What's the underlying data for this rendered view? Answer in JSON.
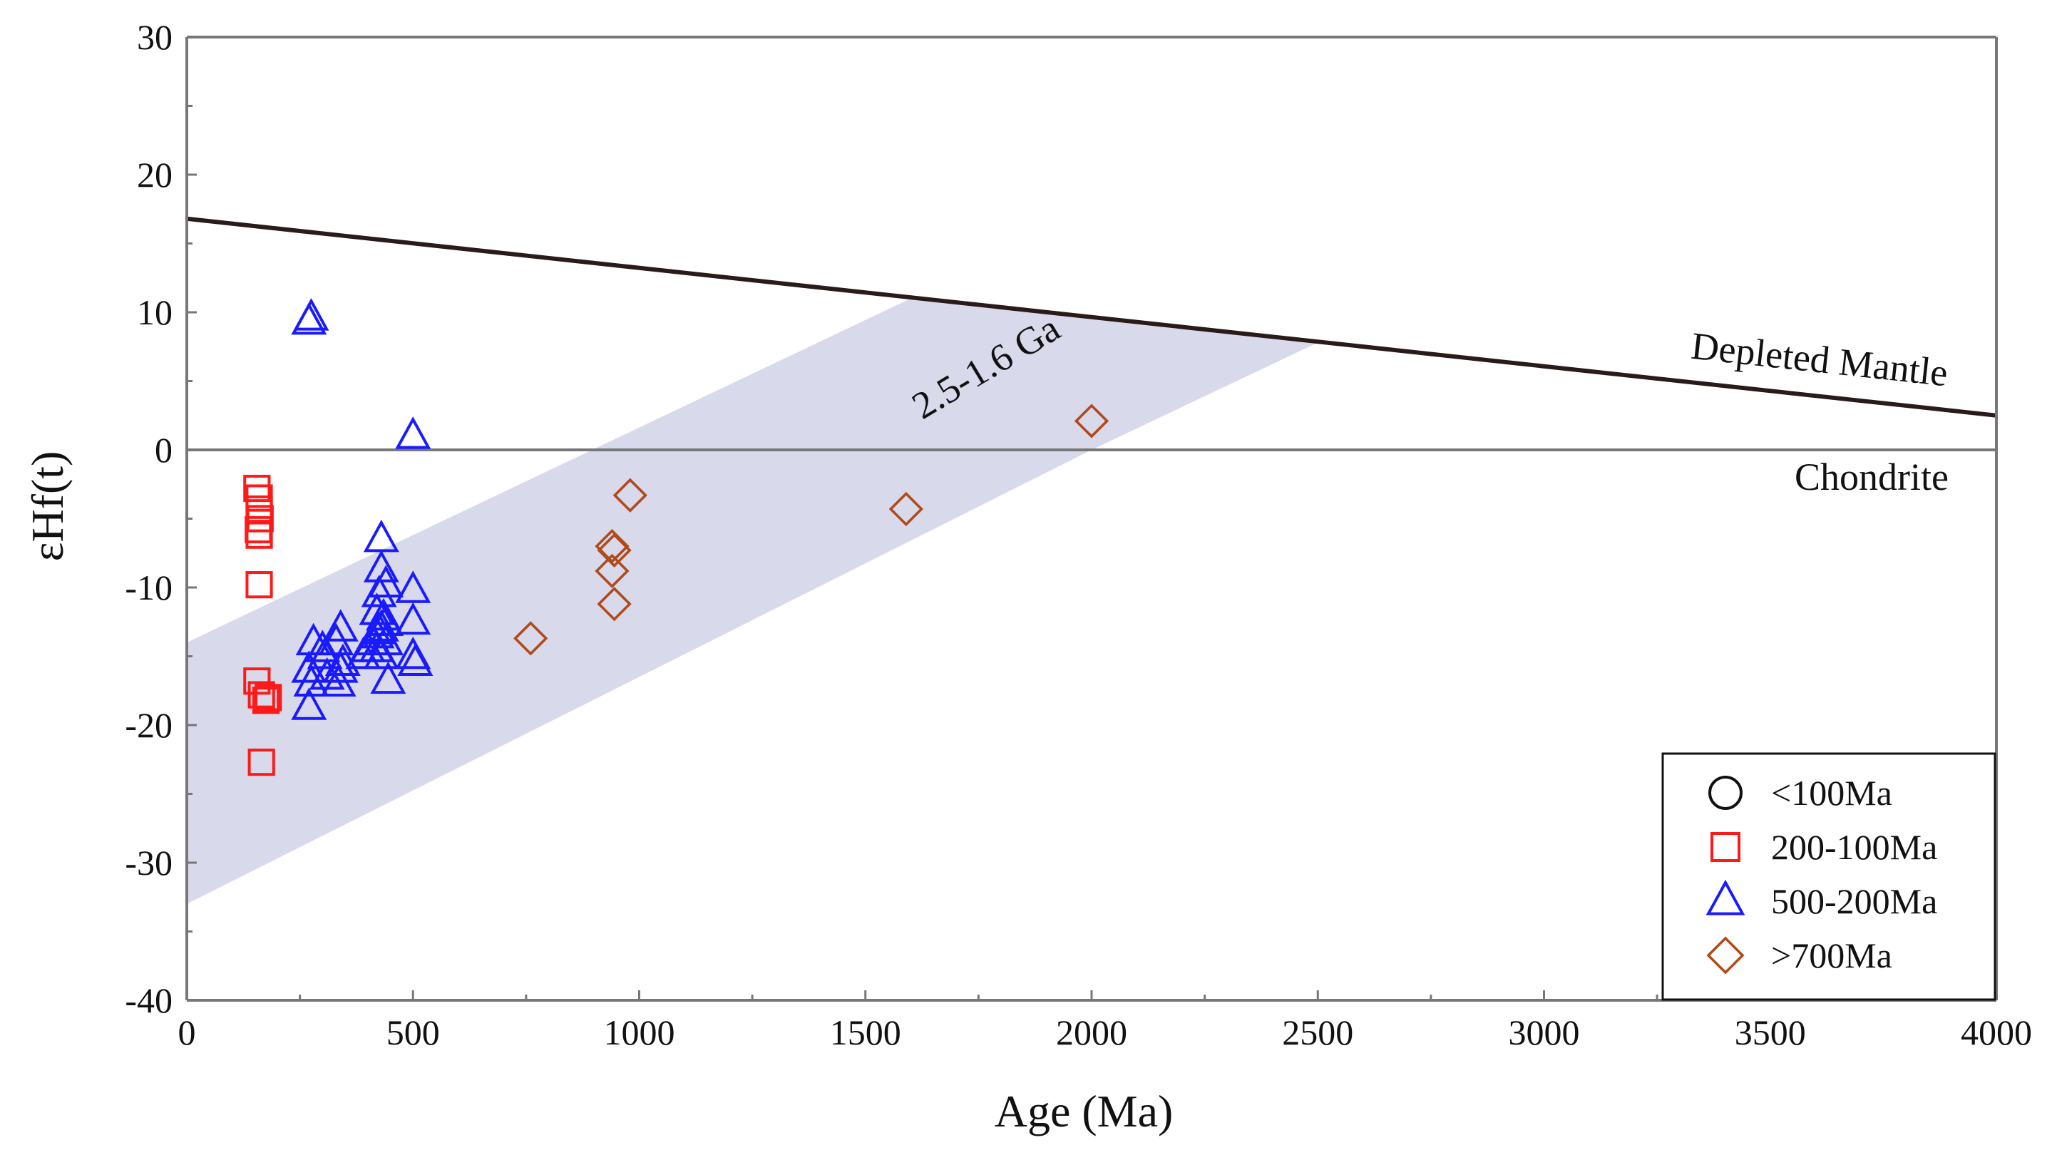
{
  "chart_data": {
    "type": "scatter",
    "title": "",
    "xlabel": "Age (Ma)",
    "ylabel": "εHf(t)",
    "xlim": [
      0,
      4000
    ],
    "ylim": [
      -40,
      30
    ],
    "xticks": [
      0,
      500,
      1000,
      1500,
      2000,
      2500,
      3000,
      3500,
      4000
    ],
    "yticks": [
      30,
      20,
      10,
      0,
      -10,
      -20,
      -30,
      -40
    ],
    "colors": {
      "band": "#d9d9ec",
      "dm_line": "#2a1a1a",
      "chondrite_line": "#777777",
      "s100": "#111111",
      "s200": "#ff1a1a",
      "s500": "#1a1aff",
      "s700": "#b04a1a"
    },
    "reference_lines": [
      {
        "name": "Depleted Mantle",
        "label": "Depleted Mantle",
        "x": [
          0,
          4000
        ],
        "y": [
          16.8,
          2.5
        ]
      },
      {
        "name": "Chondrite",
        "label": "Chondrite",
        "x": [
          0,
          4000
        ],
        "y": [
          0,
          0
        ]
      }
    ],
    "evolution_band": {
      "label": "2.5-1.6 Ga",
      "polygon": [
        [
          0,
          -14
        ],
        [
          0,
          -33
        ],
        [
          2000,
          0
        ],
        [
          2500,
          7.8
        ],
        [
          1600,
          11
        ]
      ]
    },
    "legend": {
      "position": "bottom-right",
      "entries": [
        {
          "label": "<100Ma",
          "marker": "circle",
          "series": "s100"
        },
        {
          "label": "200-100Ma",
          "marker": "square",
          "series": "s200"
        },
        {
          "label": "500-200Ma",
          "marker": "triangle",
          "series": "s500"
        },
        {
          "label": ">700Ma",
          "marker": "diamond",
          "series": "s700"
        }
      ]
    },
    "series": [
      {
        "name": "<100Ma",
        "key": "s100",
        "marker": "circle",
        "x": [],
        "y": []
      },
      {
        "name": "200-100Ma",
        "key": "s200",
        "marker": "square",
        "x": [
          155,
          160,
          160,
          162,
          158,
          160,
          160,
          155,
          165,
          175,
          180,
          165
        ],
        "y": [
          -2.8,
          -3.5,
          -4.3,
          -5.0,
          -5.8,
          -6.2,
          -9.8,
          -16.8,
          -17.8,
          -18.2,
          -18.0,
          -22.7
        ]
      },
      {
        "name": "500-200Ma",
        "key": "s500",
        "marker": "triangle",
        "x": [
          270,
          275,
          500,
          430,
          430,
          440,
          425,
          420,
          435,
          440,
          430,
          425,
          420,
          410,
          420,
          430,
          440,
          400,
          390,
          445,
          500,
          500,
          500,
          505,
          340,
          330,
          345,
          340,
          335,
          300,
          305,
          310,
          280,
          270,
          275,
          270
        ],
        "y": [
          9.3,
          9.6,
          1.0,
          -6.5,
          -8.7,
          -9.8,
          -10.5,
          -11.8,
          -12.2,
          -12.6,
          -13.0,
          -13.2,
          -13.5,
          -14.0,
          -14.5,
          -15.0,
          -14.0,
          -14.5,
          -15.0,
          -16.8,
          -10.2,
          -12.5,
          -15.0,
          -15.5,
          -13.0,
          -14.0,
          -15.5,
          -16.0,
          -17.0,
          -14.5,
          -15.0,
          -16.5,
          -14.0,
          -16.0,
          -17.0,
          -18.7
        ]
      },
      {
        "name": ">700Ma",
        "key": "s700",
        "marker": "diamond",
        "x": [
          760,
          940,
          945,
          940,
          945,
          980,
          1590,
          2000
        ],
        "y": [
          -13.7,
          -7.0,
          -7.3,
          -8.8,
          -11.2,
          -3.3,
          -4.3,
          2.1
        ]
      }
    ]
  }
}
